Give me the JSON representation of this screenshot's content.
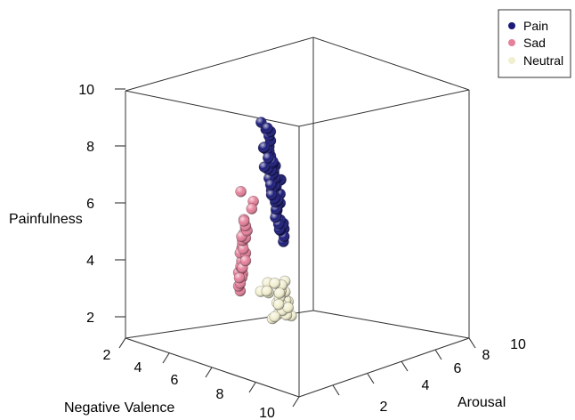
{
  "chart_data": {
    "type": "scatter3d",
    "title": "",
    "xlabel": "Negative Valence",
    "ylabel": "Arousal",
    "zlabel": "Painfulness",
    "xlim": [
      2,
      10
    ],
    "ylim": [
      0,
      10
    ],
    "zlim": [
      1,
      10
    ],
    "x_ticks": [
      "2",
      "4",
      "6",
      "8",
      "10"
    ],
    "y_ticks": [
      "2",
      "4",
      "6",
      "8",
      "10"
    ],
    "z_ticks": [
      "2",
      "4",
      "6",
      "8",
      "10"
    ],
    "legend_position": "top-right",
    "series": [
      {
        "name": "Pain",
        "color": "#1a1a7a",
        "points": [
          [
            8.8,
            6.9,
            8.6
          ],
          [
            8.6,
            7.2,
            8.3
          ],
          [
            9.0,
            7.6,
            8.5
          ],
          [
            8.4,
            6.8,
            8.1
          ],
          [
            8.8,
            7.1,
            7.8
          ],
          [
            8.2,
            6.6,
            7.9
          ],
          [
            8.5,
            6.9,
            7.4
          ],
          [
            8.0,
            6.2,
            7.5
          ],
          [
            8.3,
            6.5,
            7.6
          ],
          [
            8.1,
            6.6,
            7.2
          ],
          [
            7.9,
            6.3,
            7.1
          ],
          [
            8.2,
            6.2,
            7.0
          ],
          [
            7.8,
            6.0,
            7.3
          ],
          [
            7.7,
            5.9,
            6.8
          ],
          [
            8.0,
            6.1,
            6.9
          ],
          [
            7.6,
            5.8,
            6.9
          ],
          [
            7.6,
            5.6,
            6.5
          ],
          [
            7.4,
            5.5,
            6.6
          ],
          [
            7.3,
            5.3,
            6.3
          ],
          [
            7.1,
            5.2,
            6.4
          ],
          [
            7.6,
            5.7,
            6.3
          ],
          [
            7.1,
            5.0,
            6.0
          ],
          [
            6.9,
            4.9,
            6.1
          ],
          [
            6.8,
            4.7,
            6.5
          ],
          [
            7.3,
            5.3,
            5.9
          ],
          [
            6.6,
            4.4,
            5.9
          ],
          [
            6.5,
            4.4,
            6.0
          ],
          [
            6.8,
            4.7,
            5.8
          ],
          [
            6.6,
            4.5,
            5.5
          ],
          [
            6.4,
            4.3,
            5.5
          ],
          [
            6.2,
            4.2,
            5.7
          ],
          [
            6.7,
            4.8,
            5.6
          ],
          [
            5.9,
            3.8,
            6.1
          ],
          [
            6.1,
            3.9,
            5.3
          ],
          [
            6.3,
            4.1,
            5.2
          ],
          [
            6.1,
            3.8,
            5.1
          ],
          [
            5.8,
            3.6,
            5.3
          ],
          [
            5.9,
            3.5,
            4.9
          ],
          [
            6.2,
            3.9,
            4.9
          ],
          [
            5.6,
            3.3,
            4.7
          ],
          [
            5.8,
            3.5,
            4.6
          ],
          [
            5.5,
            3.3,
            4.5
          ],
          [
            5.4,
            3.0,
            4.3
          ],
          [
            5.7,
            3.4,
            4.4
          ],
          [
            5.3,
            3.1,
            4.1
          ],
          [
            5.5,
            3.1,
            4.6
          ],
          [
            5.1,
            2.8,
            4.3
          ],
          [
            5.2,
            2.9,
            4.5
          ],
          [
            7.0,
            5.1,
            6.8
          ],
          [
            7.8,
            5.9,
            7.6
          ],
          [
            8.5,
            6.6,
            7.7
          ],
          [
            6.9,
            4.9,
            5.7
          ],
          [
            5.6,
            3.1,
            5.0
          ],
          [
            7.2,
            5.3,
            6.7
          ],
          [
            6.4,
            4.5,
            6.2
          ],
          [
            8.4,
            6.6,
            8.3
          ],
          [
            6.7,
            4.7,
            6.3
          ],
          [
            5.2,
            2.9,
            3.9
          ]
        ]
      },
      {
        "name": "Sad",
        "color": "#e57f9a",
        "points": [
          [
            9.6,
            6.8,
            6.4
          ],
          [
            9.4,
            7.3,
            6.1
          ],
          [
            9.4,
            6.7,
            5.4
          ],
          [
            9.2,
            6.4,
            5.4
          ],
          [
            9.0,
            6.2,
            5.1
          ],
          [
            9.1,
            6.1,
            4.8
          ],
          [
            8.8,
            5.7,
            4.6
          ],
          [
            8.6,
            5.4,
            4.4
          ],
          [
            8.4,
            5.3,
            4.1
          ],
          [
            8.5,
            5.1,
            4.1
          ],
          [
            8.3,
            4.9,
            3.8
          ],
          [
            8.6,
            5.6,
            3.9
          ],
          [
            8.2,
            4.7,
            3.6
          ],
          [
            8.0,
            4.4,
            3.5
          ],
          [
            8.2,
            4.6,
            3.2
          ],
          [
            7.9,
            4.1,
            3.3
          ],
          [
            7.8,
            4.2,
            3.6
          ],
          [
            7.7,
            4.0,
            3.1
          ],
          [
            8.1,
            4.5,
            3.0
          ],
          [
            8.8,
            5.9,
            4.7
          ],
          [
            9.0,
            6.3,
            5.0
          ],
          [
            8.3,
            4.9,
            4.2
          ],
          [
            7.6,
            3.9,
            3.2
          ],
          [
            9.6,
            7.5,
            5.9
          ],
          [
            8.7,
            5.6,
            4.3
          ],
          [
            8.1,
            4.4,
            2.9
          ],
          [
            7.9,
            4.2,
            2.7
          ],
          [
            8.6,
            5.5,
            4.8
          ],
          [
            9.2,
            6.5,
            5.2
          ],
          [
            8.4,
            5.1,
            3.6
          ]
        ]
      },
      {
        "name": "Neutral",
        "color": "#f2efd0",
        "points": [
          [
            5.3,
            2.8,
            2.2
          ],
          [
            5.1,
            2.5,
            2.0
          ],
          [
            5.5,
            2.4,
            2.2
          ],
          [
            5.2,
            2.6,
            1.8
          ],
          [
            4.9,
            2.3,
            2.2
          ],
          [
            4.8,
            2.1,
            2.0
          ],
          [
            5.0,
            2.2,
            1.8
          ],
          [
            4.7,
            2.0,
            1.7
          ],
          [
            4.5,
            2.0,
            1.8
          ],
          [
            4.6,
            1.8,
            1.6
          ],
          [
            4.3,
            1.8,
            1.5
          ],
          [
            4.4,
            1.5,
            1.5
          ],
          [
            4.2,
            1.3,
            1.4
          ],
          [
            4.7,
            2.1,
            1.5
          ],
          [
            4.0,
            1.2,
            1.6
          ],
          [
            5.4,
            2.2,
            2.5
          ],
          [
            4.1,
            1.2,
            1.3
          ],
          [
            4.4,
            1.9,
            1.3
          ],
          [
            4.6,
            2.1,
            2.1
          ],
          [
            4.9,
            1.9,
            1.3
          ],
          [
            5.7,
            2.6,
            2.3
          ],
          [
            3.9,
            1.0,
            1.3
          ],
          [
            5.0,
            2.5,
            2.4
          ],
          [
            4.5,
            1.5,
            1.3
          ],
          [
            4.3,
            1.5,
            1.8
          ],
          [
            4.8,
            2.4,
            2.5
          ],
          [
            5.3,
            2.5,
            2.5
          ],
          [
            4.0,
            1.6,
            1.2
          ],
          [
            4.2,
            1.7,
            1.7
          ],
          [
            4.6,
            2.3,
            1.6
          ],
          [
            5.5,
            1.9,
            2.2
          ],
          [
            4.8,
            1.6,
            1.2
          ]
        ]
      }
    ]
  }
}
